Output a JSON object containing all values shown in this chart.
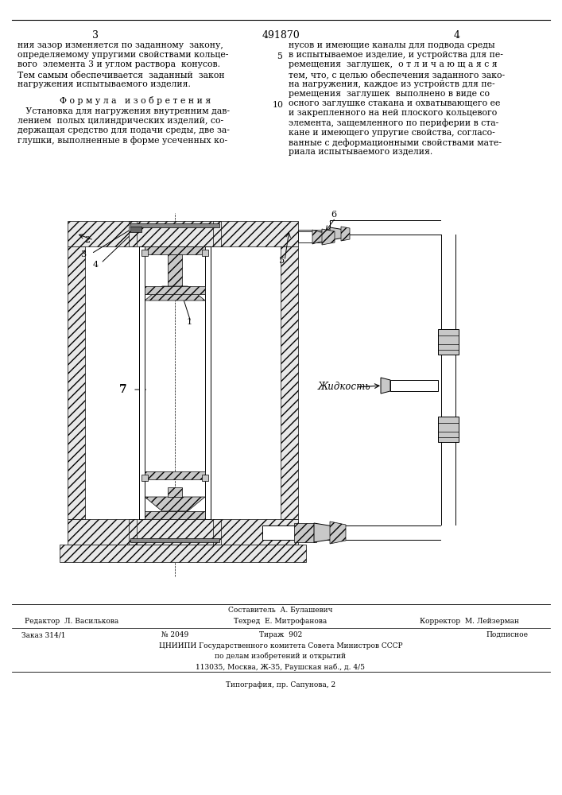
{
  "patent_number": "491870",
  "page_left": "3",
  "page_right": "4",
  "text_left_col": [
    "ния зазор изменяется по заданному  закону,",
    "определяемому упругими свойствами кольце-",
    "вого  элемента 3 и углом раствора  конусов.",
    "Тем самым обеспечивается  заданный  закон",
    "нагружения испытываемого изделия."
  ],
  "formula_title": "Ф о р м у л а   и з о б р е т е н и я",
  "formula_text": [
    "   Установка для нагружения внутренним дав-",
    "лением  полых цилиндрических изделий, со-",
    "держащая средство для подачи среды, две за-",
    "глушки, выполненные в форме усеченных ко-"
  ],
  "text_right_col": [
    "нусов и имеющие каналы для подвода среды",
    "в испытываемое изделие, и устройства для пе-",
    "ремещения  заглушек,  о т л и ч а ю щ а я с я",
    "тем, что, с целью обеспечения заданного зако-",
    "на нагружения, каждое из устройств для пе-",
    "ремещения  заглушек  выполнено в виде со",
    "осного заглушке стакана и охватывающего ее",
    "и закрепленного на ней плоского кольцевого",
    "элемента, защемленного по периферии в ста-",
    "кане и имеющего упругие свойства, согласо-",
    "ванные с деформационными свойствами мате-",
    "риала испытываемого изделия."
  ],
  "background_color": "#ffffff",
  "footer_compositor": "Составитель  А. Булашевич",
  "footer_editor": "Редактор  Л. Василькова",
  "footer_tech": "Техред  Е. Митрофанова",
  "footer_corrector": "Корректор  М. Лейзерман",
  "footer_order": "Заказ 314/1",
  "footer_tirazh": "№ 2049",
  "footer_copies": "Тираж  902",
  "footer_podpisnoe": "Подписное",
  "footer_org_line1": "ЦНИИПИ Государственного комитета Совета Министров СССР",
  "footer_org_line2": "по делам изобретений и открытий",
  "footer_org_line3": "113035, Москва, Ж-35, Раушская наб., д. 4/5",
  "footer_typography": "Типография, пр. Сапунова, 2"
}
